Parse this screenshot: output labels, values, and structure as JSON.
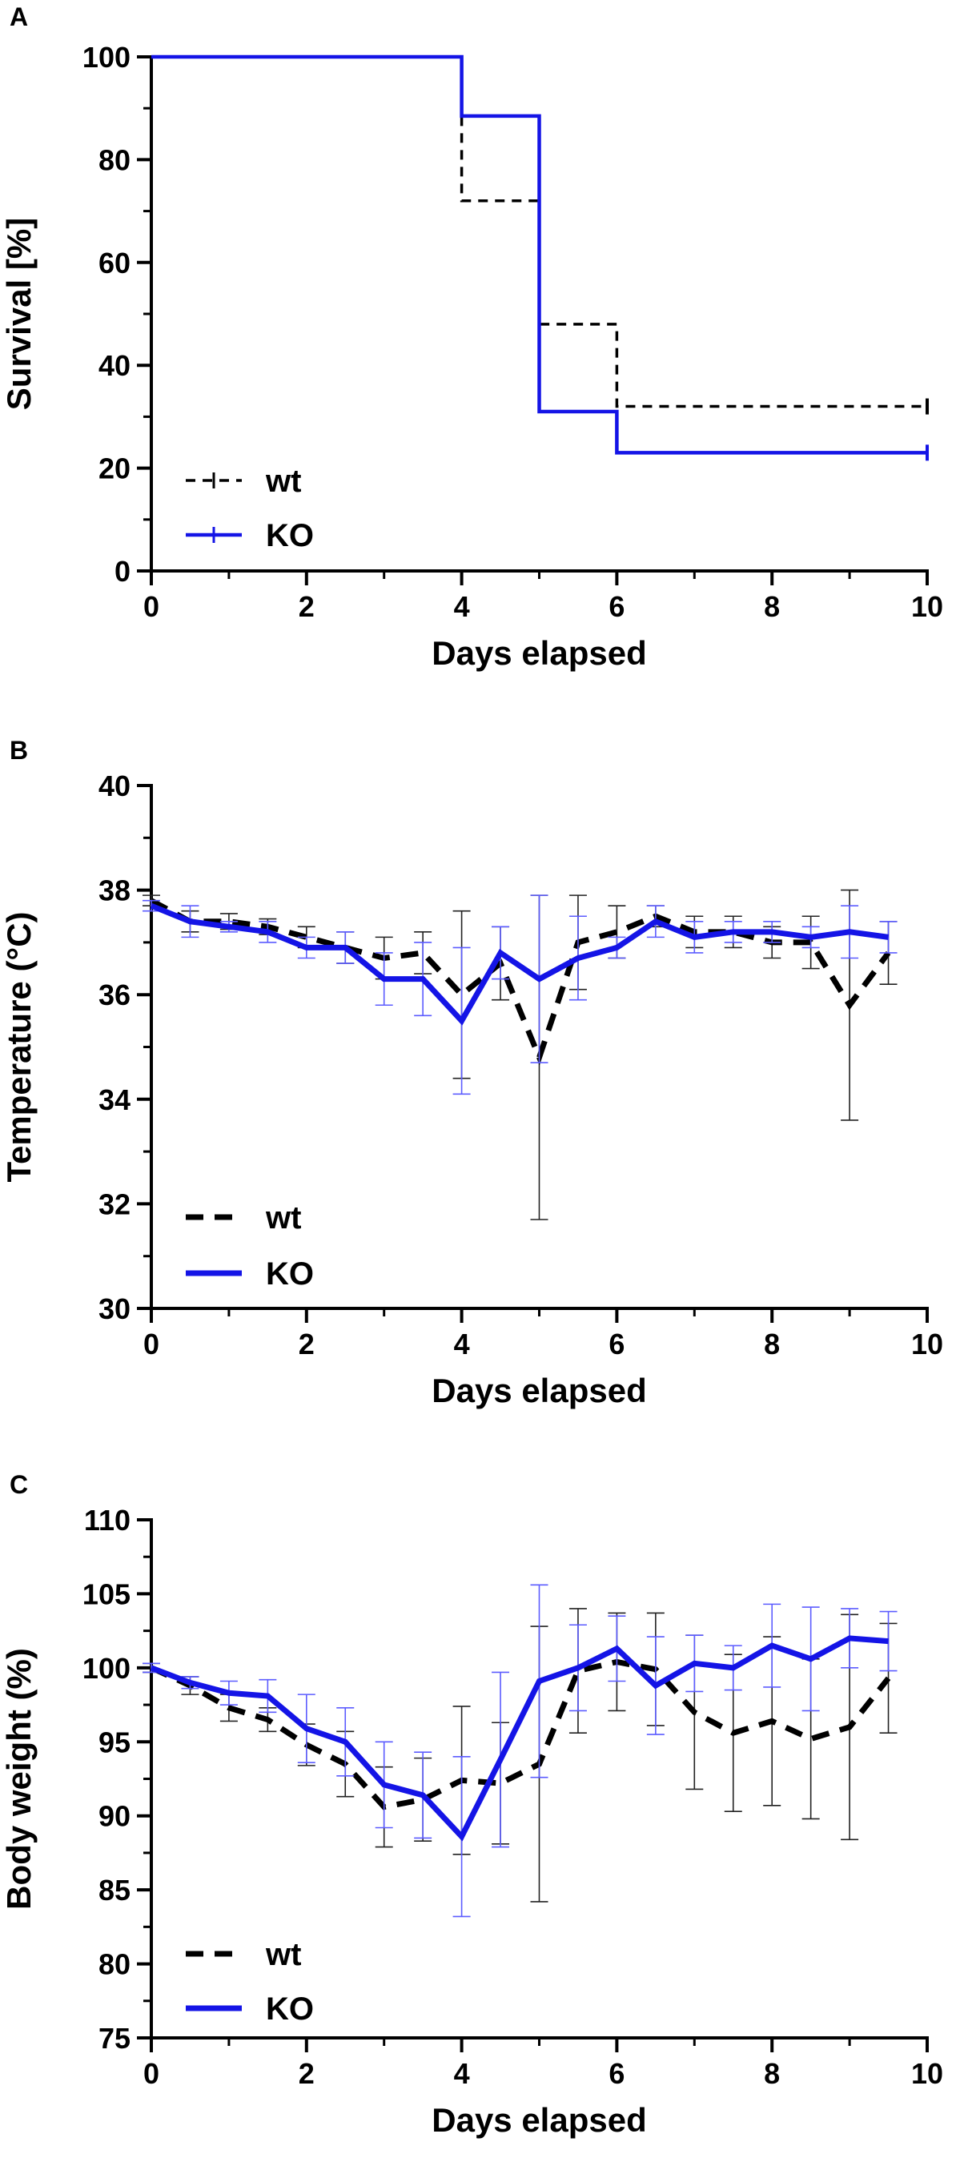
{
  "colors": {
    "wt": "#000000",
    "ko": "#1414e6",
    "axis": "#000000",
    "error_wt": "#222222",
    "error_ko": "#5c5cff"
  },
  "chart_data": [
    {
      "panel": "A",
      "type": "line",
      "step": true,
      "xlabel": "Days elapsed",
      "ylabel": "Survival [%]",
      "xlim": [
        0,
        10
      ],
      "ylim": [
        0,
        100
      ],
      "xticks": [
        0,
        2,
        4,
        6,
        8,
        10
      ],
      "yticks": [
        0,
        20,
        40,
        60,
        80,
        100
      ],
      "xtick_labels": [
        "0",
        "2",
        "4",
        "6",
        "8",
        "10"
      ],
      "ytick_labels": [
        "0",
        "20",
        "40",
        "60",
        "80",
        "100"
      ],
      "legend": {
        "position": "bottom-left",
        "entries": [
          "wt",
          "KO"
        ]
      },
      "series": [
        {
          "name": "wt",
          "style": "dashed",
          "x": [
            0,
            4,
            5,
            6,
            10
          ],
          "y": [
            100,
            72,
            48,
            32,
            32
          ]
        },
        {
          "name": "KO",
          "style": "solid",
          "x": [
            0,
            4,
            5,
            6,
            10
          ],
          "y": [
            100,
            88.5,
            31,
            23,
            23
          ]
        }
      ]
    },
    {
      "panel": "B",
      "type": "line",
      "xlabel": "Days elapsed",
      "ylabel": "Temperature (°C)",
      "xlim": [
        0,
        10
      ],
      "ylim": [
        30,
        40
      ],
      "xticks": [
        0,
        2,
        4,
        6,
        8,
        10
      ],
      "yticks": [
        30,
        32,
        34,
        36,
        38,
        40
      ],
      "xtick_labels": [
        "0",
        "2",
        "4",
        "6",
        "8",
        "10"
      ],
      "ytick_labels": [
        "30",
        "32",
        "34",
        "36",
        "38",
        "40"
      ],
      "legend": {
        "position": "bottom-left",
        "entries": [
          "wt",
          "KO"
        ]
      },
      "series": [
        {
          "name": "wt",
          "style": "dashed",
          "x": [
            0,
            0.5,
            1,
            1.5,
            2,
            2.5,
            3,
            3.5,
            4,
            4.5,
            5,
            5.5,
            6,
            6.5,
            7,
            7.5,
            8,
            8.5,
            9,
            9.5
          ],
          "y": [
            37.8,
            37.4,
            37.4,
            37.3,
            37.1,
            36.9,
            36.7,
            36.8,
            36.0,
            36.6,
            34.8,
            37.0,
            37.2,
            37.5,
            37.2,
            37.2,
            37.0,
            37.0,
            35.8,
            36.8
          ],
          "err": [
            0.1,
            0.2,
            0.15,
            0.15,
            0.2,
            0.3,
            0.4,
            0.4,
            1.6,
            0.7,
            3.1,
            0.9,
            0.5,
            0.2,
            0.3,
            0.3,
            0.3,
            0.5,
            2.2,
            0.6
          ]
        },
        {
          "name": "KO",
          "style": "solid",
          "x": [
            0,
            0.5,
            1,
            1.5,
            2,
            2.5,
            3,
            3.5,
            4,
            4.5,
            5,
            5.5,
            6,
            6.5,
            7,
            7.5,
            8,
            8.5,
            9,
            9.5
          ],
          "y": [
            37.7,
            37.4,
            37.3,
            37.2,
            36.9,
            36.9,
            36.3,
            36.3,
            35.5,
            36.8,
            36.3,
            36.7,
            36.9,
            37.4,
            37.1,
            37.2,
            37.2,
            37.1,
            37.2,
            37.1
          ],
          "err": [
            0.1,
            0.3,
            0.1,
            0.2,
            0.2,
            0.3,
            0.5,
            0.7,
            1.4,
            0.5,
            1.6,
            0.8,
            0.2,
            0.3,
            0.3,
            0.2,
            0.2,
            0.2,
            0.5,
            0.3
          ]
        }
      ]
    },
    {
      "panel": "C",
      "type": "line",
      "xlabel": "Days elapsed",
      "ylabel": "Body weight (%)",
      "xlim": [
        0,
        10
      ],
      "ylim": [
        75,
        110
      ],
      "xticks": [
        0,
        2,
        4,
        6,
        8,
        10
      ],
      "yticks": [
        75,
        80,
        85,
        90,
        95,
        100,
        105,
        110
      ],
      "xtick_labels": [
        "0",
        "2",
        "4",
        "6",
        "8",
        "10"
      ],
      "ytick_labels": [
        "75",
        "80",
        "85",
        "90",
        "95",
        "100",
        "105",
        "110"
      ],
      "legend": {
        "position": "bottom-left",
        "entries": [
          "wt",
          "KO"
        ]
      },
      "series": [
        {
          "name": "wt",
          "style": "dashed",
          "x": [
            0,
            0.5,
            1,
            1.5,
            2,
            2.5,
            3,
            3.5,
            4,
            4.5,
            5,
            5.5,
            6,
            6.5,
            7,
            7.5,
            8,
            8.5,
            9,
            9.5
          ],
          "y": [
            100,
            98.8,
            97.3,
            96.5,
            94.8,
            93.5,
            90.6,
            91.1,
            92.4,
            92.2,
            93.5,
            99.8,
            100.4,
            99.9,
            97.0,
            95.6,
            96.4,
            95.2,
            96.0,
            99.3
          ],
          "err": [
            0.3,
            0.6,
            0.9,
            0.8,
            1.4,
            2.2,
            2.7,
            2.8,
            5.0,
            4.1,
            9.3,
            4.2,
            3.3,
            3.8,
            5.2,
            5.3,
            5.7,
            5.4,
            7.6,
            3.7
          ]
        },
        {
          "name": "KO",
          "style": "solid",
          "x": [
            0,
            0.5,
            1,
            1.5,
            2,
            2.5,
            3,
            3.5,
            4,
            4.5,
            5,
            5.5,
            6,
            6.5,
            7,
            7.5,
            8,
            8.5,
            9,
            9.5
          ],
          "y": [
            100,
            99.0,
            98.3,
            98.1,
            95.9,
            95.0,
            92.1,
            91.4,
            88.6,
            93.8,
            99.1,
            100.0,
            101.3,
            98.8,
            100.3,
            100.0,
            101.5,
            100.6,
            102.0,
            101.8
          ],
          "err": [
            0.3,
            0.4,
            0.8,
            1.1,
            2.3,
            2.3,
            2.9,
            2.9,
            5.4,
            5.9,
            6.5,
            2.9,
            2.2,
            3.3,
            1.9,
            1.5,
            2.8,
            3.5,
            2.0,
            2.0
          ]
        }
      ]
    }
  ]
}
